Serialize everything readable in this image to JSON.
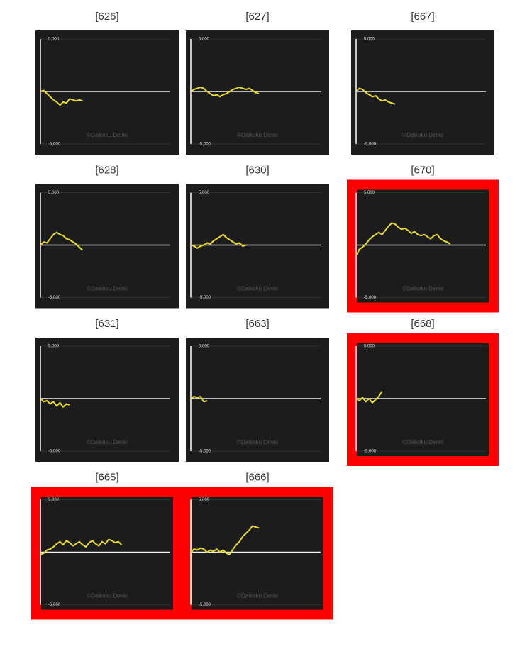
{
  "chart_data": [
    {
      "type": "line",
      "title": "[626]",
      "highlight": false,
      "watermark": "©Daikoku Denki",
      "color": "#e6dc2e",
      "xlim": [
        0,
        40
      ],
      "ylim": [
        -5000,
        5000
      ],
      "yticks": [
        {
          "value": 5000,
          "label": "5,000"
        },
        {
          "value": -5000,
          "label": "-5,000"
        }
      ],
      "grid": true,
      "values": [
        0,
        100,
        -200,
        -500,
        -800,
        -1000,
        -1300,
        -1000,
        -1100,
        -700,
        -800,
        -900,
        -800,
        -900
      ]
    },
    {
      "type": "line",
      "title": "[627]",
      "highlight": false,
      "watermark": "©Daikoku Denki",
      "color": "#e6dc2e",
      "xlim": [
        0,
        40
      ],
      "ylim": [
        -5000,
        5000
      ],
      "yticks": [
        {
          "value": 5000,
          "label": "5,000"
        },
        {
          "value": -5000,
          "label": "-5,000"
        }
      ],
      "grid": true,
      "values": [
        0,
        200,
        300,
        400,
        300,
        0,
        -200,
        -400,
        -300,
        -500,
        -300,
        -200,
        0,
        200,
        300,
        400,
        300,
        200,
        300,
        100,
        -100,
        -200
      ]
    },
    {
      "type": "line",
      "title": "[667]",
      "highlight": false,
      "watermark": "©Daikoku Denki",
      "color": "#e6dc2e",
      "xlim": [
        0,
        40
      ],
      "ylim": [
        -5000,
        5000
      ],
      "yticks": [
        {
          "value": 5000,
          "label": "5,000"
        },
        {
          "value": -5000,
          "label": "-5,000"
        }
      ],
      "grid": true,
      "values": [
        0,
        300,
        200,
        -100,
        -300,
        -500,
        -400,
        -700,
        -900,
        -800,
        -1000,
        -1100,
        -1200
      ]
    },
    {
      "type": "line",
      "title": "[628]",
      "highlight": false,
      "watermark": "©Daikoku Denki",
      "color": "#e6dc2e",
      "xlim": [
        0,
        40
      ],
      "ylim": [
        -5000,
        5000
      ],
      "yticks": [
        {
          "value": 5000,
          "label": "5,000"
        },
        {
          "value": -5000,
          "label": "-5,000"
        }
      ],
      "grid": true,
      "values": [
        0,
        300,
        200,
        600,
        1000,
        1200,
        1000,
        900,
        600,
        500,
        300,
        100,
        -200,
        -500
      ]
    },
    {
      "type": "line",
      "title": "[630]",
      "highlight": false,
      "watermark": "©Daikoku Denki",
      "color": "#e6dc2e",
      "xlim": [
        0,
        40
      ],
      "ylim": [
        -5000,
        5000
      ],
      "yticks": [
        {
          "value": 5000,
          "label": "5,000"
        },
        {
          "value": -5000,
          "label": "-5,000"
        }
      ],
      "grid": true,
      "values": [
        0,
        -100,
        -300,
        -100,
        0,
        200,
        100,
        400,
        600,
        800,
        1000,
        700,
        500,
        300,
        100,
        200,
        -100,
        0
      ]
    },
    {
      "type": "line",
      "title": "[670]",
      "highlight": true,
      "watermark": "©Daikoku Denki",
      "color": "#e6dc2e",
      "xlim": [
        0,
        40
      ],
      "ylim": [
        -5000,
        5000
      ],
      "yticks": [
        {
          "value": 5000,
          "label": "5,000"
        },
        {
          "value": -5000,
          "label": "-5,000"
        }
      ],
      "grid": true,
      "values": [
        -1000,
        -400,
        -200,
        100,
        500,
        800,
        1000,
        1200,
        1000,
        1400,
        1800,
        2100,
        2000,
        1700,
        1500,
        1600,
        1400,
        1100,
        1300,
        1000,
        900,
        1000,
        800,
        600,
        900,
        1000,
        600,
        400,
        300,
        100
      ]
    },
    {
      "type": "line",
      "title": "[631]",
      "highlight": false,
      "watermark": "©Daikoku Denki",
      "color": "#e6dc2e",
      "xlim": [
        0,
        40
      ],
      "ylim": [
        -5000,
        5000
      ],
      "yticks": [
        {
          "value": 5000,
          "label": "5,000"
        },
        {
          "value": -5000,
          "label": "-5,000"
        }
      ],
      "grid": true,
      "values": [
        0,
        -300,
        -200,
        -500,
        -300,
        -700,
        -400,
        -800,
        -500,
        -600
      ]
    },
    {
      "type": "line",
      "title": "[663]",
      "highlight": false,
      "watermark": "©Daikoku Denki",
      "color": "#e6dc2e",
      "xlim": [
        0,
        40
      ],
      "ylim": [
        -5000,
        5000
      ],
      "yticks": [
        {
          "value": 5000,
          "label": "5,000"
        },
        {
          "value": -5000,
          "label": "-5,000"
        }
      ],
      "grid": true,
      "values": [
        0,
        200,
        100,
        200,
        -300,
        -200
      ]
    },
    {
      "type": "line",
      "title": "[668]",
      "highlight": true,
      "watermark": "©Daikoku Denki",
      "color": "#e6dc2e",
      "xlim": [
        0,
        40
      ],
      "ylim": [
        -5000,
        5000
      ],
      "yticks": [
        {
          "value": 5000,
          "label": "5,000"
        },
        {
          "value": -5000,
          "label": "-5,000"
        }
      ],
      "grid": true,
      "values": [
        0,
        -200,
        100,
        -300,
        0,
        -400,
        -100,
        200,
        700
      ]
    },
    {
      "type": "line",
      "title": "[665]",
      "highlight": true,
      "watermark": "©Daikoku Denki",
      "color": "#e6dc2e",
      "xlim": [
        0,
        40
      ],
      "ylim": [
        -5000,
        5000
      ],
      "yticks": [
        {
          "value": 5000,
          "label": "5,000"
        },
        {
          "value": -5000,
          "label": "-5,000"
        }
      ],
      "grid": true,
      "values": [
        -200,
        -100,
        200,
        300,
        500,
        800,
        1000,
        700,
        1100,
        900,
        600,
        800,
        1000,
        700,
        500,
        900,
        1100,
        800,
        600,
        1000,
        800,
        1200,
        1100,
        900,
        1000,
        700
      ]
    },
    {
      "type": "line",
      "title": "[666]",
      "highlight": true,
      "watermark": "©Daikoku Denki",
      "color": "#e6dc2e",
      "xlim": [
        0,
        40
      ],
      "ylim": [
        -5000,
        5000
      ],
      "yticks": [
        {
          "value": 5000,
          "label": "5,000"
        },
        {
          "value": -5000,
          "label": "-5,000"
        }
      ],
      "grid": true,
      "values": [
        0,
        300,
        200,
        400,
        300,
        0,
        200,
        100,
        300,
        0,
        200,
        -100,
        -200,
        300,
        700,
        1000,
        1500,
        1800,
        2100,
        2500,
        2400,
        2300
      ]
    }
  ]
}
